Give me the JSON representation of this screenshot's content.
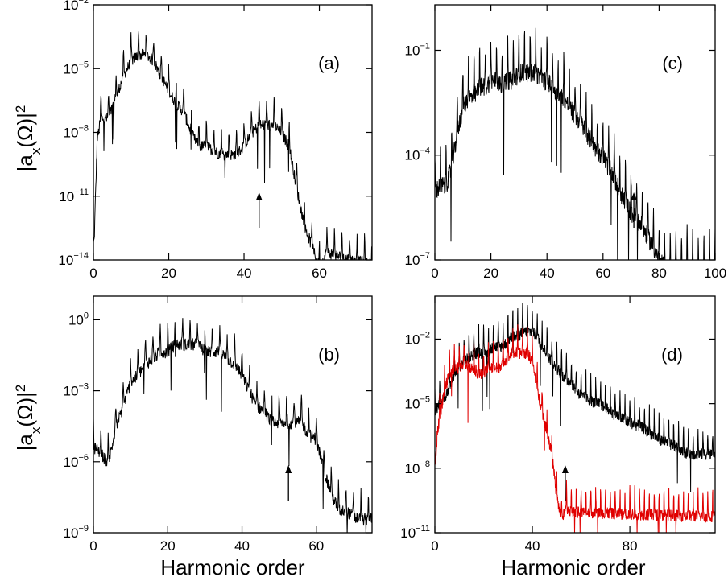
{
  "ylabel": "|a_x(Ω)|²",
  "xlabel": "Harmonic order",
  "chart_data": [
    {
      "panel": "(a)",
      "type": "line",
      "yscale": "log",
      "xlim": [
        0,
        74
      ],
      "ylim": [
        1e-14,
        0.01
      ],
      "xticks": [
        "0",
        "20",
        "40",
        "60"
      ],
      "yticks": [
        {
          "base": "10",
          "exp": "−2"
        },
        {
          "base": "10",
          "exp": "−5"
        },
        {
          "base": "10",
          "exp": "−8"
        },
        {
          "base": "10",
          "exp": "−11"
        },
        {
          "base": "10",
          "exp": "−14"
        }
      ],
      "harmonic_spacing": 2,
      "arrow_at": 44,
      "series": [
        {
          "color": "#000000",
          "x": [
            0,
            1,
            2,
            4,
            6,
            8,
            10,
            12,
            14,
            16,
            18,
            20,
            22,
            24,
            26,
            28,
            30,
            32,
            34,
            36,
            38,
            40,
            42,
            44,
            46,
            48,
            50,
            52,
            54,
            56,
            58,
            60,
            62,
            66,
            70,
            74
          ],
          "y": [
            1e-14,
            1e-08,
            1e-07,
            1e-07,
            1e-06,
            1e-05,
            5e-05,
            0.0001,
            0.0001,
            5e-05,
            1e-05,
            2e-06,
            5e-07,
            2e-07,
            2e-08,
            5e-09,
            5e-09,
            3e-09,
            2e-09,
            2e-09,
            2e-09,
            5e-09,
            2e-08,
            5e-08,
            5e-08,
            5e-08,
            2e-08,
            5e-09,
            5e-11,
            1e-12,
            1e-13,
            1e-14,
            5e-14,
            3e-14,
            2e-14,
            1.5e-14
          ]
        }
      ]
    },
    {
      "panel": "(b)",
      "type": "line",
      "yscale": "log",
      "xlim": [
        0,
        75
      ],
      "ylim": [
        1e-09,
        10.0
      ],
      "xticks": [
        "0",
        "20",
        "40",
        "60"
      ],
      "yticks": [
        {
          "base": "10",
          "exp": "0"
        },
        {
          "base": "10",
          "exp": "−3"
        },
        {
          "base": "10",
          "exp": "−6"
        },
        {
          "base": "10",
          "exp": "−9"
        }
      ],
      "harmonic_spacing": 2,
      "arrow_at": 52.5,
      "series": [
        {
          "color": "#000000",
          "x": [
            0,
            2,
            4,
            6,
            8,
            10,
            12,
            14,
            16,
            18,
            20,
            22,
            24,
            26,
            28,
            30,
            32,
            34,
            36,
            38,
            40,
            42,
            44,
            46,
            48,
            50,
            52,
            54,
            56,
            58,
            60,
            62,
            64,
            66,
            68,
            70,
            72,
            75
          ],
          "y": [
            1e-05,
            5e-06,
            2e-06,
            5e-05,
            0.0005,
            0.005,
            0.01,
            0.03,
            0.05,
            0.1,
            0.1,
            0.2,
            0.2,
            0.2,
            0.2,
            0.1,
            0.1,
            0.1,
            0.05,
            0.03,
            0.01,
            0.002,
            0.0005,
            0.0003,
            0.0001,
            0.0001,
            0.0001,
            0.0001,
            0.0001,
            3e-05,
            2e-05,
            1e-06,
            1e-07,
            2e-08,
            2e-08,
            1e-08,
            8e-09,
            8e-09
          ]
        }
      ]
    },
    {
      "panel": "(c)",
      "type": "line",
      "yscale": "log",
      "xlim": [
        0,
        100
      ],
      "ylim": [
        1e-07,
        2.0
      ],
      "xticks": [
        "0",
        "20",
        "40",
        "60",
        "80",
        "100"
      ],
      "yticks": [
        {
          "base": "10",
          "exp": "−1"
        },
        {
          "base": "10",
          "exp": "−4"
        },
        {
          "base": "10",
          "exp": "−7"
        }
      ],
      "harmonic_spacing": 2,
      "arrow_at": 71,
      "series": [
        {
          "color": "#000000",
          "x": [
            0,
            2,
            4,
            6,
            8,
            10,
            12,
            14,
            16,
            18,
            20,
            22,
            24,
            26,
            28,
            30,
            32,
            34,
            36,
            38,
            40,
            42,
            44,
            46,
            48,
            50,
            52,
            54,
            56,
            58,
            60,
            62,
            64,
            66,
            68,
            70,
            72,
            74,
            76,
            78,
            80,
            84,
            88,
            92,
            96,
            100
          ],
          "y": [
            2e-05,
            3e-05,
            3e-05,
            0.0001,
            0.001,
            0.005,
            0.01,
            0.01,
            0.02,
            0.02,
            0.03,
            0.03,
            0.02,
            0.03,
            0.03,
            0.05,
            0.05,
            0.05,
            0.05,
            0.03,
            0.03,
            0.02,
            0.01,
            0.01,
            0.005,
            0.003,
            0.002,
            0.001,
            0.0005,
            0.0003,
            0.0002,
            0.0001,
            5e-05,
            2e-05,
            1e-05,
            5e-06,
            3e-06,
            2e-06,
            1e-06,
            5e-07,
            2e-07,
            1e-07,
            1e-07,
            1e-07,
            1e-07,
            1e-07
          ]
        }
      ]
    },
    {
      "panel": "(d)",
      "type": "line",
      "yscale": "log",
      "xlim": [
        0,
        115
      ],
      "ylim": [
        1e-11,
        1.0
      ],
      "xticks": [
        "0",
        "40",
        "80"
      ],
      "yticks": [
        {
          "base": "10",
          "exp": "−2"
        },
        {
          "base": "10",
          "exp": "−5"
        },
        {
          "base": "10",
          "exp": "−8"
        },
        {
          "base": "10",
          "exp": "−11"
        }
      ],
      "harmonic_spacing": 2,
      "arrow_at": 53.5,
      "series": [
        {
          "color": "#000000",
          "x": [
            0,
            2,
            4,
            6,
            8,
            10,
            12,
            14,
            16,
            18,
            20,
            22,
            24,
            26,
            28,
            30,
            32,
            34,
            36,
            38,
            40,
            42,
            44,
            46,
            48,
            50,
            52,
            54,
            56,
            58,
            60,
            64,
            68,
            72,
            76,
            80,
            84,
            88,
            92,
            96,
            100,
            104,
            108,
            112,
            115
          ],
          "y": [
            1e-05,
            2e-05,
            5e-05,
            0.0001,
            0.0005,
            0.001,
            0.002,
            0.003,
            0.005,
            0.005,
            0.005,
            0.005,
            0.01,
            0.01,
            0.01,
            0.02,
            0.03,
            0.03,
            0.05,
            0.05,
            0.05,
            0.03,
            0.01,
            0.005,
            0.002,
            0.001,
            0.0005,
            0.0003,
            0.0002,
            0.0001,
            5e-05,
            3e-05,
            2e-05,
            1e-05,
            5e-06,
            3e-06,
            2e-06,
            1e-06,
            5e-07,
            3e-07,
            2e-07,
            1e-07,
            1e-07,
            1e-07,
            1e-07
          ]
        },
        {
          "color": "#e00000",
          "x": [
            0,
            1,
            2,
            4,
            6,
            8,
            10,
            12,
            14,
            16,
            18,
            20,
            22,
            24,
            26,
            28,
            30,
            32,
            34,
            36,
            38,
            40,
            42,
            44,
            46,
            48,
            50,
            52,
            54,
            56,
            60,
            70,
            80,
            90,
            100,
            110,
            115
          ],
          "y": [
            1e-08,
            1e-06,
            5e-06,
            0.0001,
            0.0005,
            0.001,
            0.001,
            0.002,
            0.001,
            0.001,
            0.0005,
            0.0005,
            0.001,
            0.001,
            0.001,
            0.002,
            0.003,
            0.005,
            0.005,
            0.005,
            0.005,
            0.002,
            0.0001,
            1e-05,
            1e-06,
            1e-07,
            1e-09,
            1e-10,
            3e-10,
            2e-10,
            2e-10,
            1.8e-10,
            1.6e-10,
            1.5e-10,
            1.4e-10,
            1.3e-10,
            1.3e-10
          ]
        }
      ]
    }
  ]
}
